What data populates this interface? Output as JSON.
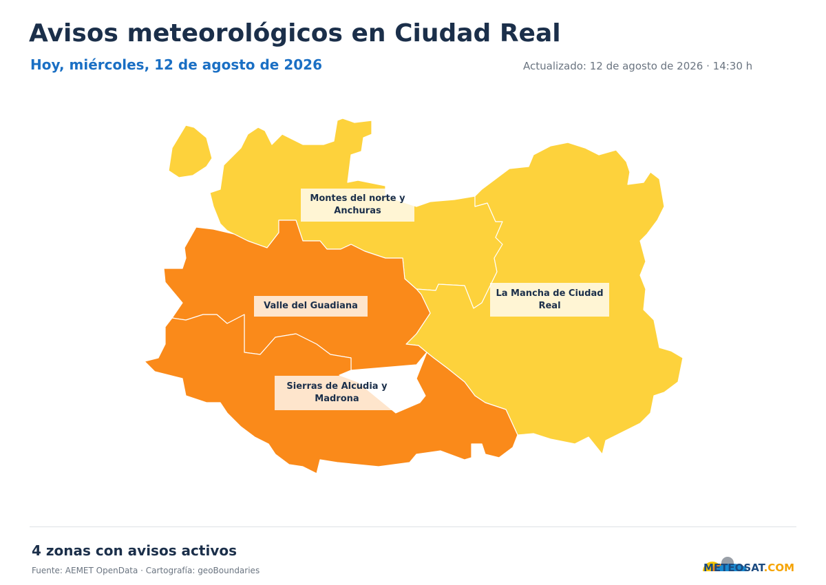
{
  "header": {
    "title": "Avisos meteorológicos en Ciudad Real",
    "subtitle": "Hoy, miércoles, 12 de agosto de 2026",
    "updated": "Actualizado: 12 de agosto de 2026 · 14:30 h"
  },
  "zones": [
    {
      "label": "Montes del norte y Anchuras",
      "color": "#fdd23c"
    },
    {
      "label": "La Mancha de Ciudad Real",
      "color": "#fdd23c"
    },
    {
      "label": "Valle del Guadiana",
      "color": "#fa8a1a"
    },
    {
      "label": "Sierras de Alcudia y Madrona",
      "color": "#fa8a1a"
    }
  ],
  "footer": {
    "summary": "4 zonas con avisos activos",
    "source": "Fuente: AEMET OpenData · Cartografía: geoBoundaries"
  },
  "logo": {
    "name": "METEOSAT",
    "suffix": ".COM"
  }
}
